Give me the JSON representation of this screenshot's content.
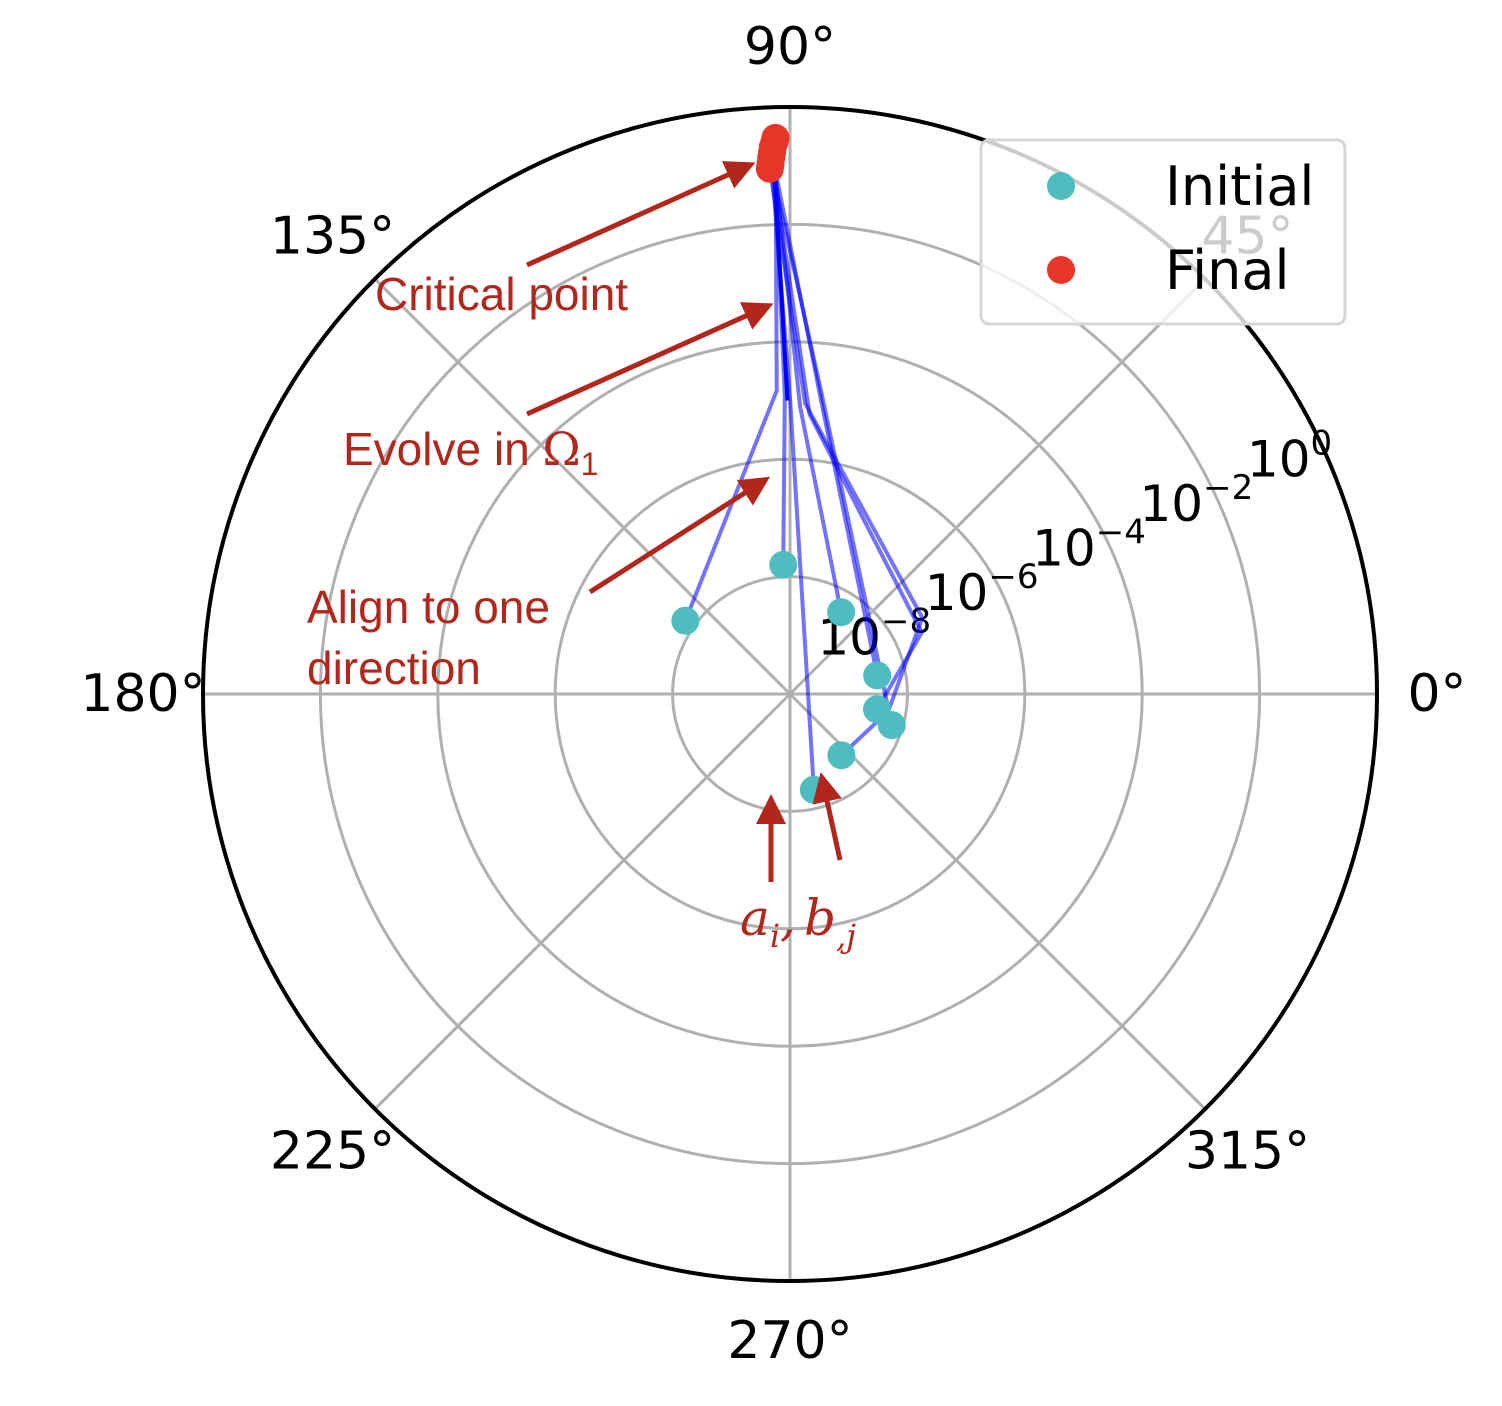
{
  "chart_data": {
    "type": "scatter",
    "projection": "polar",
    "radial_scale": "log",
    "rlim": [
      1e-10,
      1
    ],
    "grid": true,
    "legend_position": "top-right",
    "theta_tick_labels": [
      "0°",
      "45°",
      "90°",
      "135°",
      "180°",
      "225°",
      "270°",
      "315°"
    ],
    "radial_ticks": [
      {
        "value": 1e-08,
        "base": "10",
        "exp": "−8"
      },
      {
        "value": 1e-06,
        "base": "10",
        "exp": "−6"
      },
      {
        "value": 0.0001,
        "base": "10",
        "exp": "−4"
      },
      {
        "value": 0.01,
        "base": "10",
        "exp": "−2"
      },
      {
        "value": 1,
        "base": "10",
        "exp": "0"
      }
    ],
    "colors": {
      "initial": "#4fbcbf",
      "final": "#e8352a",
      "trajectory": "#0000ff",
      "annotation": "#b2271c",
      "grid": "#b0b0b0",
      "frame": "#000000"
    },
    "series": [
      {
        "name": "Initial",
        "points": [
          {
            "theta_deg": 145,
            "r": 1.5e-08
          },
          {
            "theta_deg": 93,
            "r": 1.6e-08
          },
          {
            "theta_deg": 58,
            "r": 4.4e-09
          },
          {
            "theta_deg": 12,
            "r": 3.3e-09
          },
          {
            "theta_deg": 350,
            "r": 3.2e-09
          },
          {
            "theta_deg": 343,
            "r": 6.5e-09
          },
          {
            "theta_deg": 310,
            "r": 2.3e-09
          },
          {
            "theta_deg": 284,
            "r": 4.8e-09
          }
        ]
      },
      {
        "name": "Final",
        "points": [
          {
            "theta_deg": 91.5,
            "r": 0.3
          },
          {
            "theta_deg": 91.6,
            "r": 0.26
          },
          {
            "theta_deg": 91.8,
            "r": 0.21
          },
          {
            "theta_deg": 91.9,
            "r": 0.17
          },
          {
            "theta_deg": 92.0,
            "r": 0.14
          },
          {
            "theta_deg": 92.1,
            "r": 0.11
          },
          {
            "theta_deg": 92.2,
            "r": 0.09
          }
        ]
      }
    ],
    "trajectories": [
      {
        "points": [
          {
            "theta_deg": 145,
            "r": 1.5e-08
          },
          {
            "theta_deg": 92.5,
            "r": 1.5e-05
          },
          {
            "theta_deg": 91.5,
            "r": 0.28
          }
        ]
      },
      {
        "points": [
          {
            "theta_deg": 93,
            "r": 1.6e-08
          },
          {
            "theta_deg": 91,
            "r": 1.2e-05
          },
          {
            "theta_deg": 91.7,
            "r": 0.24
          }
        ]
      },
      {
        "points": [
          {
            "theta_deg": 58,
            "r": 4.4e-09
          },
          {
            "theta_deg": 88,
            "r": 8e-06
          },
          {
            "theta_deg": 91.8,
            "r": 0.2
          }
        ]
      },
      {
        "points": [
          {
            "theta_deg": 12,
            "r": 3.3e-09
          },
          {
            "theta_deg": 84,
            "r": 1.1e-05
          },
          {
            "theta_deg": 91.9,
            "r": 0.16
          }
        ]
      },
      {
        "points": [
          {
            "theta_deg": 350,
            "r": 3.2e-09
          },
          {
            "theta_deg": 25,
            "r": 3e-08
          },
          {
            "theta_deg": 86,
            "r": 6e-06
          },
          {
            "theta_deg": 92,
            "r": 0.13
          }
        ]
      },
      {
        "points": [
          {
            "theta_deg": 343,
            "r": 6.5e-09
          },
          {
            "theta_deg": 84,
            "r": 1.4e-05
          },
          {
            "theta_deg": 92.1,
            "r": 0.11
          }
        ]
      },
      {
        "points": [
          {
            "theta_deg": 310,
            "r": 2.3e-09
          },
          {
            "theta_deg": 350,
            "r": 5e-09
          },
          {
            "theta_deg": 30,
            "r": 4e-08
          },
          {
            "theta_deg": 87,
            "r": 9e-06
          },
          {
            "theta_deg": 92.2,
            "r": 0.09
          }
        ]
      },
      {
        "points": [
          {
            "theta_deg": 284,
            "r": 4.8e-09
          },
          {
            "theta_deg": 90,
            "r": 1.1e-05
          },
          {
            "theta_deg": 92,
            "r": 0.12
          }
        ]
      }
    ],
    "annotations": {
      "critical_point": "Critical point",
      "evolve_prefix": "Evolve in ",
      "evolve_symbol": "Ω",
      "evolve_subscript": "1",
      "align_line1": "Align to one",
      "align_line2": "direction",
      "ai_base": "a",
      "ai_sub": "i",
      "bj_base": "b",
      "bj_sub": ",j",
      "separator": ","
    }
  }
}
